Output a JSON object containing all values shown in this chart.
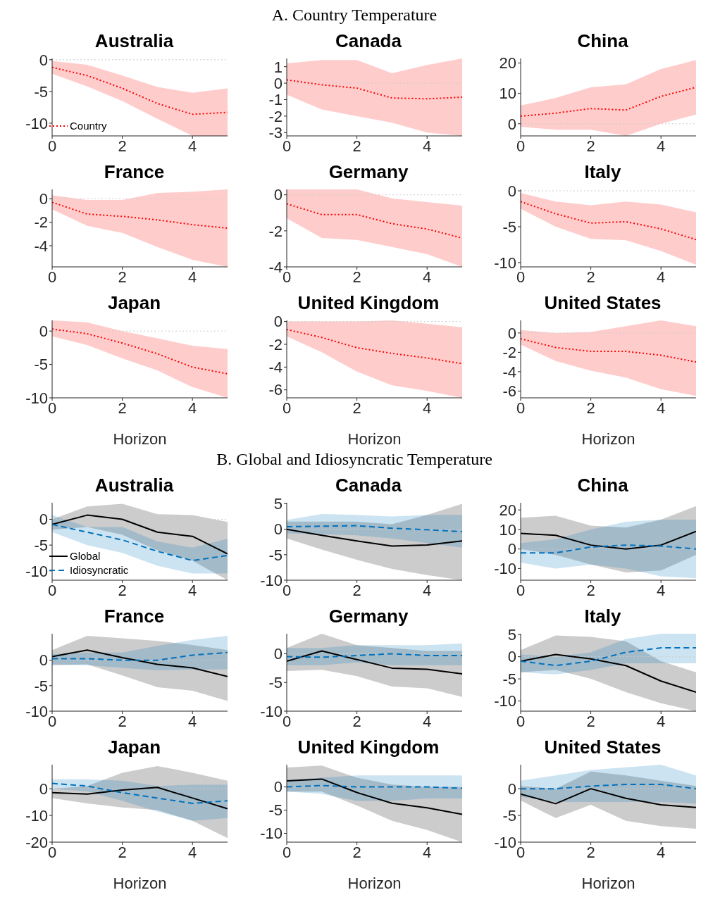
{
  "chart_data": [
    {
      "type": "line",
      "title": "Australia",
      "annotations": [
        "A. Country Temperature"
      ],
      "x": [
        0,
        1,
        2,
        3,
        4,
        5
      ],
      "xlim": [
        0,
        5
      ],
      "xticks": [
        0,
        2,
        4
      ],
      "ylim": [
        -12,
        0.2
      ],
      "yticks": [
        -10,
        -5,
        0
      ],
      "legend": "bottom left",
      "ref_lines": [
        {
          "axis": "y",
          "value": 0,
          "color": "#cccccc",
          "line_style": "dotted"
        }
      ],
      "series": [
        {
          "name": "Country",
          "color": "#ff0000",
          "line_style": "dotted",
          "values": [
            -1.2,
            -2.5,
            -4.5,
            -6.9,
            -8.6,
            -8.3
          ],
          "lower": [
            -2.2,
            -4.2,
            -6.5,
            -9.3,
            -12,
            -12
          ],
          "upper": [
            -0.2,
            -0.8,
            -2.5,
            -4.3,
            -5.2,
            -4.5
          ]
        }
      ]
    },
    {
      "type": "line",
      "title": "Canada",
      "x": [
        0,
        1,
        2,
        3,
        4,
        5
      ],
      "xlim": [
        0,
        5
      ],
      "xticks": [
        0,
        2,
        4
      ],
      "ylim": [
        -3.2,
        1.5
      ],
      "yticks": [
        -3,
        -2,
        -1,
        0,
        1
      ],
      "ref_lines": [
        {
          "axis": "y",
          "value": 0,
          "color": "#cccccc",
          "line_style": "dotted"
        }
      ],
      "series": [
        {
          "color": "#ff0000",
          "line_style": "dotted",
          "values": [
            0.2,
            -0.1,
            -0.3,
            -0.9,
            -0.95,
            -0.85
          ],
          "lower": [
            -0.7,
            -1.6,
            -2.0,
            -2.4,
            -3.0,
            -3.2
          ],
          "upper": [
            1.2,
            1.4,
            1.4,
            0.6,
            1.1,
            1.5
          ]
        }
      ]
    },
    {
      "type": "line",
      "title": "China",
      "x": [
        0,
        1,
        2,
        3,
        4,
        5
      ],
      "xlim": [
        0,
        5
      ],
      "xticks": [
        0,
        2,
        4
      ],
      "ylim": [
        -4,
        21.5
      ],
      "yticks": [
        0,
        10,
        20
      ],
      "ref_lines": [
        {
          "axis": "y",
          "value": 0,
          "color": "#cccccc",
          "line_style": "dotted"
        }
      ],
      "series": [
        {
          "color": "#ff0000",
          "line_style": "dotted",
          "values": [
            2.5,
            3.5,
            5,
            4.5,
            9,
            12
          ],
          "lower": [
            -1,
            -2,
            -2,
            -4,
            0,
            3
          ],
          "upper": [
            6,
            8.5,
            12,
            13,
            18,
            21
          ]
        }
      ]
    },
    {
      "type": "line",
      "title": "France",
      "x": [
        0,
        1,
        2,
        3,
        4,
        5
      ],
      "xlim": [
        0,
        5
      ],
      "xticks": [
        0,
        2,
        4
      ],
      "ylim": [
        -5.8,
        0.8
      ],
      "yticks": [
        -4,
        -2,
        0
      ],
      "ref_lines": [
        {
          "axis": "y",
          "value": 0,
          "color": "#cccccc",
          "line_style": "dotted"
        }
      ],
      "series": [
        {
          "color": "#ff0000",
          "line_style": "dotted",
          "values": [
            -0.3,
            -1.3,
            -1.5,
            -1.8,
            -2.2,
            -2.5
          ],
          "lower": [
            -0.9,
            -2.3,
            -2.9,
            -4.1,
            -5.2,
            -5.8
          ],
          "upper": [
            0.3,
            -0.1,
            -0.1,
            0.5,
            0.6,
            0.8
          ]
        }
      ]
    },
    {
      "type": "line",
      "title": "Germany",
      "x": [
        0,
        1,
        2,
        3,
        4,
        5
      ],
      "xlim": [
        0,
        5
      ],
      "xticks": [
        0,
        2,
        4
      ],
      "ylim": [
        -4,
        0.3
      ],
      "yticks": [
        -4,
        -2,
        0
      ],
      "ref_lines": [
        {
          "axis": "y",
          "value": 0,
          "color": "#cccccc",
          "line_style": "dotted"
        }
      ],
      "series": [
        {
          "color": "#ff0000",
          "line_style": "dotted",
          "values": [
            -0.5,
            -1.1,
            -1.1,
            -1.6,
            -1.9,
            -2.4
          ],
          "lower": [
            -1.3,
            -2.4,
            -2.5,
            -2.9,
            -3.3,
            -4
          ],
          "upper": [
            0.3,
            0.3,
            0.3,
            -0.2,
            -0.4,
            -0.6
          ]
        }
      ]
    },
    {
      "type": "line",
      "title": "Italy",
      "x": [
        0,
        1,
        2,
        3,
        4,
        5
      ],
      "xlim": [
        0,
        5
      ],
      "xticks": [
        0,
        2,
        4
      ],
      "ylim": [
        -10.6,
        0.2
      ],
      "yticks": [
        -10,
        -5,
        0
      ],
      "ref_lines": [
        {
          "axis": "y",
          "value": 0,
          "color": "#cccccc",
          "line_style": "dotted"
        }
      ],
      "series": [
        {
          "color": "#ff0000",
          "line_style": "dotted",
          "values": [
            -1.5,
            -3.2,
            -4.5,
            -4.3,
            -5.3,
            -6.8
          ],
          "lower": [
            -2.5,
            -5,
            -6.7,
            -6.9,
            -8.4,
            -10.3
          ],
          "upper": [
            -0.3,
            -1.5,
            -2.0,
            -1.5,
            -1.9,
            -3
          ]
        }
      ]
    },
    {
      "type": "line",
      "title": "Japan",
      "xlabel": "Horizon",
      "x": [
        0,
        1,
        2,
        3,
        4,
        5
      ],
      "xlim": [
        0,
        5
      ],
      "xticks": [
        0,
        2,
        4
      ],
      "ylim": [
        -10,
        1.6
      ],
      "yticks": [
        -10,
        -5,
        0
      ],
      "ref_lines": [
        {
          "axis": "y",
          "value": 0,
          "color": "#cccccc",
          "line_style": "dotted"
        }
      ],
      "series": [
        {
          "color": "#ff0000",
          "line_style": "dotted",
          "values": [
            0.3,
            -0.4,
            -1.8,
            -3.4,
            -5.4,
            -6.4
          ],
          "lower": [
            -0.8,
            -2.1,
            -4.1,
            -5.9,
            -8.4,
            -10
          ],
          "upper": [
            1.6,
            1.3,
            0,
            -1.1,
            -2.2,
            -2.7
          ]
        }
      ]
    },
    {
      "type": "line",
      "title": "United Kingdom",
      "xlabel": "Horizon",
      "x": [
        0,
        1,
        2,
        3,
        4,
        5
      ],
      "xlim": [
        0,
        5
      ],
      "xticks": [
        0,
        2,
        4
      ],
      "ylim": [
        -6.7,
        0.1
      ],
      "yticks": [
        -6,
        -4,
        -2,
        0
      ],
      "ref_lines": [
        {
          "axis": "y",
          "value": 0,
          "color": "#cccccc",
          "line_style": "dotted"
        }
      ],
      "series": [
        {
          "color": "#ff0000",
          "line_style": "dotted",
          "values": [
            -0.7,
            -1.4,
            -2.3,
            -2.8,
            -3.2,
            -3.7
          ],
          "lower": [
            -1.3,
            -2.7,
            -4.4,
            -5.6,
            -6.1,
            -6.7
          ],
          "upper": [
            0,
            0,
            0,
            0.1,
            -0.2,
            -0.5
          ]
        }
      ]
    },
    {
      "type": "line",
      "title": "United States",
      "xlabel": "Horizon",
      "x": [
        0,
        1,
        2,
        3,
        4,
        5
      ],
      "xlim": [
        0,
        5
      ],
      "xticks": [
        0,
        2,
        4
      ],
      "ylim": [
        -6.7,
        1.3
      ],
      "yticks": [
        -6,
        -4,
        -2,
        0
      ],
      "ref_lines": [
        {
          "axis": "y",
          "value": 0,
          "color": "#cccccc",
          "line_style": "dotted"
        }
      ],
      "series": [
        {
          "color": "#ff0000",
          "line_style": "dotted",
          "values": [
            -0.6,
            -1.5,
            -1.9,
            -1.9,
            -2.3,
            -3
          ],
          "lower": [
            -1.2,
            -2.9,
            -3.9,
            -4.6,
            -5.8,
            -6.5
          ],
          "upper": [
            0.3,
            0,
            0.1,
            0.7,
            1.3,
            0.7
          ]
        }
      ]
    },
    {
      "type": "line",
      "title": "Australia",
      "annotations": [
        "B. Global and Idiosyncratic Temperature"
      ],
      "x": [
        0,
        1,
        2,
        3,
        4,
        5
      ],
      "xlim": [
        0,
        5
      ],
      "xticks": [
        0,
        2,
        4
      ],
      "ylim": [
        -11.8,
        3.2
      ],
      "yticks": [
        -10,
        -5,
        0
      ],
      "legend": "bottom left",
      "ref_lines": [
        {
          "axis": "y",
          "value": 0,
          "color": "#cccccc",
          "line_style": "dotted"
        }
      ],
      "series": [
        {
          "name": "Global",
          "color": "#000000",
          "line_style": "solid",
          "values": [
            -1,
            0.8,
            0,
            -2.5,
            -3.3,
            -6.7
          ],
          "lower": [
            -2,
            -1.5,
            -3,
            -6,
            -8,
            -11.8
          ],
          "upper": [
            0,
            2.5,
            3,
            1,
            0.8,
            -0.5
          ]
        },
        {
          "name": "Idiosyncratic",
          "color": "#0072bd",
          "line_style": "dashed",
          "values": [
            -1,
            -2.5,
            -4,
            -6.2,
            -8,
            -7
          ],
          "lower": [
            -2.5,
            -5,
            -6.5,
            -9,
            -10.5,
            -10.5
          ],
          "upper": [
            0.8,
            -1.5,
            -1.5,
            -4.3,
            -5.5,
            -3.8
          ]
        }
      ]
    },
    {
      "type": "line",
      "title": "Canada",
      "x": [
        0,
        1,
        2,
        3,
        4,
        5
      ],
      "xlim": [
        0,
        5
      ],
      "xticks": [
        0,
        2,
        4
      ],
      "ylim": [
        -10,
        5.2
      ],
      "yticks": [
        -10,
        -5,
        0,
        5
      ],
      "ref_lines": [
        {
          "axis": "y",
          "value": 0,
          "color": "#cccccc",
          "line_style": "dotted"
        }
      ],
      "series": [
        {
          "color": "#000000",
          "line_style": "solid",
          "values": [
            0,
            -1.2,
            -2.3,
            -3.3,
            -3.1,
            -2.3
          ],
          "lower": [
            -1.8,
            -4,
            -6,
            -7.8,
            -9,
            -10
          ],
          "upper": [
            1.5,
            1.5,
            1.5,
            1,
            2.8,
            5
          ]
        },
        {
          "color": "#0072bd",
          "line_style": "dashed",
          "values": [
            0.5,
            0.6,
            0.7,
            0.2,
            -0.1,
            -0.5
          ],
          "lower": [
            -0.8,
            -1,
            -1.2,
            -1.8,
            -2.7,
            -3.6
          ],
          "upper": [
            1.8,
            3,
            2.8,
            2.5,
            2.8,
            2.8
          ]
        }
      ]
    },
    {
      "type": "line",
      "title": "China",
      "x": [
        0,
        1,
        2,
        3,
        4,
        5
      ],
      "xlim": [
        0,
        5
      ],
      "xticks": [
        0,
        2,
        4
      ],
      "ylim": [
        -16,
        23.7
      ],
      "yticks": [
        -10,
        0,
        10,
        20
      ],
      "ref_lines": [
        {
          "axis": "y",
          "value": 0,
          "color": "#cccccc",
          "line_style": "dotted"
        }
      ],
      "series": [
        {
          "color": "#000000",
          "line_style": "solid",
          "values": [
            8,
            7,
            2,
            0,
            2,
            9
          ],
          "lower": [
            0,
            -3,
            -8,
            -12,
            -11,
            -3
          ],
          "upper": [
            16,
            17,
            12,
            11,
            15,
            22
          ]
        },
        {
          "color": "#0072bd",
          "line_style": "dashed",
          "values": [
            -2,
            -2,
            1,
            2,
            1.5,
            0
          ],
          "lower": [
            -7,
            -10,
            -8,
            -10,
            -14,
            -15
          ],
          "upper": [
            3,
            5,
            10,
            14,
            15,
            15
          ]
        }
      ]
    },
    {
      "type": "line",
      "title": "France",
      "x": [
        0,
        1,
        2,
        3,
        4,
        5
      ],
      "xlim": [
        0,
        5
      ],
      "xticks": [
        0,
        2,
        4
      ],
      "ylim": [
        -10,
        5.2
      ],
      "yticks": [
        -10,
        -5,
        0
      ],
      "ref_lines": [
        {
          "axis": "y",
          "value": 0,
          "color": "#cccccc",
          "line_style": "dotted"
        }
      ],
      "series": [
        {
          "color": "#000000",
          "line_style": "solid",
          "values": [
            0.7,
            2,
            0.5,
            -0.8,
            -1.5,
            -3.2
          ],
          "lower": [
            -1,
            -0.8,
            -3,
            -5.3,
            -6,
            -8
          ],
          "upper": [
            2,
            4.8,
            4.3,
            3.8,
            3,
            2
          ]
        },
        {
          "color": "#0072bd",
          "line_style": "dashed",
          "values": [
            0.3,
            0.3,
            0,
            0,
            1,
            1.5
          ],
          "lower": [
            -0.8,
            -1,
            -1.5,
            -2,
            -1.8,
            -1.8
          ],
          "upper": [
            1.2,
            1.5,
            1.5,
            2.8,
            4,
            4.8
          ]
        }
      ]
    },
    {
      "type": "line",
      "title": "Germany",
      "x": [
        0,
        1,
        2,
        3,
        4,
        5
      ],
      "xlim": [
        0,
        5
      ],
      "xticks": [
        0,
        2,
        4
      ],
      "ylim": [
        -10,
        3.5
      ],
      "yticks": [
        -10,
        -5,
        0
      ],
      "ref_lines": [
        {
          "axis": "y",
          "value": 0,
          "color": "#cccccc",
          "line_style": "dotted"
        }
      ],
      "series": [
        {
          "color": "#000000",
          "line_style": "solid",
          "values": [
            -1.3,
            0.5,
            -1,
            -2.5,
            -2.7,
            -3.5
          ],
          "lower": [
            -3,
            -2.8,
            -3.9,
            -5.7,
            -6,
            -7.5
          ],
          "upper": [
            1,
            3.5,
            1.5,
            1,
            0.5,
            0.5
          ]
        },
        {
          "color": "#0072bd",
          "line_style": "dashed",
          "values": [
            -0.5,
            -0.6,
            -0.3,
            0,
            -0.3,
            -0.3
          ],
          "lower": [
            -2,
            -2,
            -1.5,
            -2,
            -2,
            -2
          ],
          "upper": [
            1,
            1,
            1.5,
            1.5,
            1.5,
            1.8
          ]
        }
      ]
    },
    {
      "type": "line",
      "title": "Italy",
      "x": [
        0,
        1,
        2,
        3,
        4,
        5
      ],
      "xlim": [
        0,
        5
      ],
      "xticks": [
        0,
        2,
        4
      ],
      "ylim": [
        -12.3,
        5.2
      ],
      "yticks": [
        -10,
        -5,
        0,
        5
      ],
      "ref_lines": [
        {
          "axis": "y",
          "value": 0,
          "color": "#cccccc",
          "line_style": "dotted"
        }
      ],
      "series": [
        {
          "color": "#000000",
          "line_style": "solid",
          "values": [
            -1,
            0.5,
            -0.5,
            -2,
            -5.5,
            -8
          ],
          "lower": [
            -3.5,
            -3,
            -5,
            -8,
            -10.5,
            -12.3
          ],
          "upper": [
            1.5,
            4.8,
            4.5,
            3.5,
            -1,
            -3.5
          ]
        },
        {
          "color": "#0072bd",
          "line_style": "dashed",
          "values": [
            -1,
            -2,
            -1,
            1,
            2,
            2
          ],
          "lower": [
            -3.5,
            -4,
            -3,
            -1.5,
            -1.5,
            -1.5
          ],
          "upper": [
            0.5,
            0,
            1,
            4,
            5.2,
            5.2
          ]
        }
      ]
    },
    {
      "type": "line",
      "title": "Japan",
      "xlabel": "Horizon",
      "x": [
        0,
        1,
        2,
        3,
        4,
        5
      ],
      "xlim": [
        0,
        5
      ],
      "xticks": [
        0,
        2,
        4
      ],
      "ylim": [
        -20,
        9
      ],
      "yticks": [
        -20,
        -10,
        0
      ],
      "ref_lines": [
        {
          "axis": "y",
          "value": 0,
          "color": "#cccccc",
          "line_style": "dotted"
        }
      ],
      "series": [
        {
          "color": "#000000",
          "line_style": "solid",
          "values": [
            -1.5,
            -2,
            -0.5,
            0.5,
            -3.5,
            -7.5
          ],
          "lower": [
            -3.5,
            -5.5,
            -7,
            -8,
            -12,
            -18.5
          ],
          "upper": [
            0,
            1,
            6,
            8.5,
            6,
            3
          ]
        },
        {
          "color": "#0072bd",
          "line_style": "dashed",
          "values": [
            2,
            1,
            -1.5,
            -3.5,
            -5.5,
            -4.5
          ],
          "lower": [
            0,
            -1,
            -4.5,
            -8.5,
            -12,
            -11
          ],
          "upper": [
            3.5,
            3.5,
            3,
            1,
            1.5,
            1.5
          ]
        }
      ]
    },
    {
      "type": "line",
      "title": "United Kingdom",
      "xlabel": "Horizon",
      "x": [
        0,
        1,
        2,
        3,
        4,
        5
      ],
      "xlim": [
        0,
        5
      ],
      "xticks": [
        0,
        2,
        4
      ],
      "ylim": [
        -11.9,
        4.8
      ],
      "yticks": [
        -10,
        -5,
        0
      ],
      "ref_lines": [
        {
          "axis": "y",
          "value": 0,
          "color": "#cccccc",
          "line_style": "dotted"
        }
      ],
      "series": [
        {
          "color": "#000000",
          "line_style": "solid",
          "values": [
            1.3,
            1.7,
            -1.2,
            -3.5,
            -4.5,
            -5.9
          ],
          "lower": [
            -1,
            -1,
            -4,
            -7.3,
            -9.3,
            -11.9
          ],
          "upper": [
            4.2,
            4.6,
            2,
            0.5,
            0,
            0
          ]
        },
        {
          "color": "#0072bd",
          "line_style": "dashed",
          "values": [
            0,
            0.3,
            0,
            0,
            0,
            -0.3
          ],
          "lower": [
            -1,
            -1.5,
            -3,
            -3,
            -2.5,
            -2.5
          ],
          "upper": [
            1.5,
            2,
            2.5,
            2.5,
            2.5,
            2.5
          ]
        }
      ]
    },
    {
      "type": "line",
      "title": "United States",
      "xlabel": "Horizon",
      "x": [
        0,
        1,
        2,
        3,
        4,
        5
      ],
      "xlim": [
        0,
        5
      ],
      "xticks": [
        0,
        2,
        4
      ],
      "ylim": [
        -10,
        4.5
      ],
      "yticks": [
        -10,
        -5,
        0
      ],
      "ref_lines": [
        {
          "axis": "y",
          "value": 0,
          "color": "#cccccc",
          "line_style": "dotted"
        }
      ],
      "series": [
        {
          "color": "#000000",
          "line_style": "solid",
          "values": [
            -1,
            -2.8,
            0,
            -1.8,
            -3,
            -3.5
          ],
          "lower": [
            -2.2,
            -5.5,
            -3,
            -6,
            -7,
            -7.5
          ],
          "upper": [
            0.5,
            0,
            3.2,
            2.5,
            1.5,
            0.5
          ]
        },
        {
          "color": "#0072bd",
          "line_style": "dashed",
          "values": [
            0,
            0,
            0.5,
            0.8,
            0.8,
            0
          ],
          "lower": [
            -1.5,
            -2.5,
            -2.5,
            -2.5,
            -2.5,
            -2.8
          ],
          "upper": [
            1.5,
            2.5,
            3.5,
            4,
            4.5,
            2.5
          ]
        }
      ]
    }
  ]
}
